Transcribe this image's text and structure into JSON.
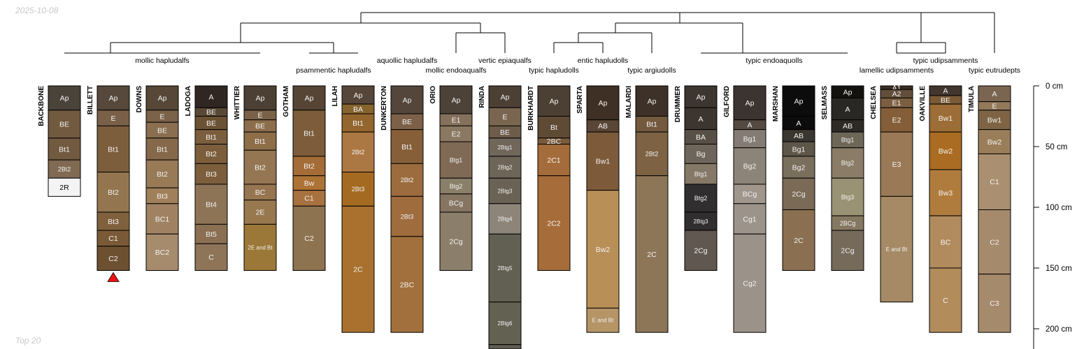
{
  "header": {
    "date": "2025-10-08"
  },
  "footer": {
    "label": "Top 20"
  },
  "depth_axis": {
    "unit": "cm",
    "ticks": [
      0,
      50,
      100,
      150,
      200
    ],
    "max": 220
  },
  "groups": [
    "mollic hapludalfs",
    "psammentic hapludalfs",
    "aquollic hapludalfs",
    "vertic epiaqualfs",
    "mollic endoaqualfs",
    "entic hapludolls",
    "typic hapludolls",
    "typic argiudolls",
    "typic endoaquolls",
    "typic udipsamments",
    "lamellic udipsamments",
    "typic eutrudepts"
  ],
  "profiles": [
    {
      "name": "BACKBONE",
      "horizons": [
        {
          "name": "Ap",
          "top": 0,
          "bottom": 20,
          "color": "#4a433a"
        },
        {
          "name": "BE",
          "top": 20,
          "bottom": 43,
          "color": "#725a40"
        },
        {
          "name": "Bt1",
          "top": 43,
          "bottom": 61,
          "color": "#725a40"
        },
        {
          "name": "2Bt2",
          "top": 61,
          "bottom": 76,
          "color": "#816a52"
        },
        {
          "name": "2R",
          "top": 76,
          "bottom": 91,
          "color": "#f4f4f4"
        }
      ]
    },
    {
      "name": "BILLETT",
      "marker": true,
      "horizons": [
        {
          "name": "Ap",
          "top": 0,
          "bottom": 20,
          "color": "#56483a"
        },
        {
          "name": "E",
          "top": 20,
          "bottom": 33,
          "color": "#7a6048"
        },
        {
          "name": "Bt1",
          "top": 33,
          "bottom": 71,
          "color": "#7d5e3c"
        },
        {
          "name": "Bt2",
          "top": 71,
          "bottom": 104,
          "color": "#93764f"
        },
        {
          "name": "Bt3",
          "top": 104,
          "bottom": 119,
          "color": "#80613d"
        },
        {
          "name": "C1",
          "top": 119,
          "bottom": 132,
          "color": "#7a5a36"
        },
        {
          "name": "C2",
          "top": 132,
          "bottom": 152,
          "color": "#6d5030"
        }
      ]
    },
    {
      "name": "DOWNS",
      "horizons": [
        {
          "name": "Ap",
          "top": 0,
          "bottom": 20,
          "color": "#564736"
        },
        {
          "name": "E",
          "top": 20,
          "bottom": 30,
          "color": "#7a6349"
        },
        {
          "name": "BE",
          "top": 30,
          "bottom": 43,
          "color": "#8a6e4f"
        },
        {
          "name": "Bt1",
          "top": 43,
          "bottom": 61,
          "color": "#86694a"
        },
        {
          "name": "Bt2",
          "top": 61,
          "bottom": 84,
          "color": "#987a57"
        },
        {
          "name": "Bt3",
          "top": 84,
          "bottom": 97,
          "color": "#a0805a"
        },
        {
          "name": "BC1",
          "top": 97,
          "bottom": 122,
          "color": "#a08262"
        },
        {
          "name": "BC2",
          "top": 122,
          "bottom": 152,
          "color": "#a68b6c"
        }
      ]
    },
    {
      "name": "LADOGA",
      "horizons": [
        {
          "name": "A",
          "top": 0,
          "bottom": 18,
          "color": "#302722"
        },
        {
          "name": "BE",
          "top": 18,
          "bottom": 25,
          "color": "#5a4836"
        },
        {
          "name": "BE",
          "top": 25,
          "bottom": 36,
          "color": "#6c5234"
        },
        {
          "name": "Bt1",
          "top": 36,
          "bottom": 48,
          "color": "#7a5e3d"
        },
        {
          "name": "Bt2",
          "top": 48,
          "bottom": 64,
          "color": "#7c5e3c"
        },
        {
          "name": "Bt3",
          "top": 64,
          "bottom": 81,
          "color": "#7c5e3c"
        },
        {
          "name": "Bt4",
          "top": 81,
          "bottom": 114,
          "color": "#8e7457"
        },
        {
          "name": "Bt5",
          "top": 114,
          "bottom": 130,
          "color": "#8a6f52"
        },
        {
          "name": "C",
          "top": 130,
          "bottom": 152,
          "color": "#8e7558"
        }
      ]
    },
    {
      "name": "WHITTIER",
      "horizons": [
        {
          "name": "Ap",
          "top": 0,
          "bottom": 20,
          "color": "#4c4034"
        },
        {
          "name": "E",
          "top": 20,
          "bottom": 28,
          "color": "#7a6248"
        },
        {
          "name": "BE",
          "top": 28,
          "bottom": 38,
          "color": "#8d6e4c"
        },
        {
          "name": "Bt1",
          "top": 38,
          "bottom": 53,
          "color": "#8e6e49"
        },
        {
          "name": "Bt2",
          "top": 53,
          "bottom": 81,
          "color": "#957652"
        },
        {
          "name": "BC",
          "top": 81,
          "bottom": 94,
          "color": "#957650"
        },
        {
          "name": "2E",
          "top": 94,
          "bottom": 114,
          "color": "#98784e"
        },
        {
          "name": "2E and Bt",
          "top": 114,
          "bottom": 152,
          "color": "#9c7838"
        }
      ]
    },
    {
      "name": "GOTHAM",
      "horizons": [
        {
          "name": "Ap",
          "top": 0,
          "bottom": 20,
          "color": "#564535"
        },
        {
          "name": "Bt1",
          "top": 20,
          "bottom": 58,
          "color": "#7c5c3a"
        },
        {
          "name": "Bt2",
          "top": 58,
          "bottom": 74,
          "color": "#a46c36"
        },
        {
          "name": "Bw",
          "top": 74,
          "bottom": 86,
          "color": "#ad7236"
        },
        {
          "name": "C1",
          "top": 86,
          "bottom": 99,
          "color": "#a7723f"
        },
        {
          "name": "C2",
          "top": 99,
          "bottom": 152,
          "color": "#8e7350"
        }
      ]
    },
    {
      "name": "LILAH",
      "horizons": [
        {
          "name": "Ap",
          "top": 0,
          "bottom": 15,
          "color": "#56463a"
        },
        {
          "name": "BA",
          "top": 15,
          "bottom": 23,
          "color": "#86642e"
        },
        {
          "name": "Bt1",
          "top": 23,
          "bottom": 38,
          "color": "#93662f"
        },
        {
          "name": "2Bt2",
          "top": 38,
          "bottom": 71,
          "color": "#ab7743"
        },
        {
          "name": "2Bt3",
          "top": 71,
          "bottom": 99,
          "color": "#a56a22"
        },
        {
          "name": "2C",
          "top": 99,
          "bottom": 203,
          "color": "#a9702e"
        }
      ]
    },
    {
      "name": "DUNKERTON",
      "horizons": [
        {
          "name": "Ap",
          "top": 0,
          "bottom": 23,
          "color": "#54463a"
        },
        {
          "name": "BE",
          "top": 23,
          "bottom": 36,
          "color": "#7c6048"
        },
        {
          "name": "Bt1",
          "top": 36,
          "bottom": 64,
          "color": "#865f38"
        },
        {
          "name": "2Bt2",
          "top": 64,
          "bottom": 91,
          "color": "#9c6c3e"
        },
        {
          "name": "2Bt3",
          "top": 91,
          "bottom": 124,
          "color": "#9f6c3e"
        },
        {
          "name": "2BC",
          "top": 124,
          "bottom": 203,
          "color": "#a2703c"
        }
      ]
    },
    {
      "name": "ORIO",
      "horizons": [
        {
          "name": "Ap",
          "top": 0,
          "bottom": 23,
          "color": "#4d4238"
        },
        {
          "name": "E1",
          "top": 23,
          "bottom": 33,
          "color": "#85705c"
        },
        {
          "name": "E2",
          "top": 33,
          "bottom": 46,
          "color": "#8b7862"
        },
        {
          "name": "Btg1",
          "top": 46,
          "bottom": 76,
          "color": "#7e6a55"
        },
        {
          "name": "Btg2",
          "top": 76,
          "bottom": 89,
          "color": "#8a7f69"
        },
        {
          "name": "BCg",
          "top": 89,
          "bottom": 104,
          "color": "#857561"
        },
        {
          "name": "2Cg",
          "top": 104,
          "bottom": 152,
          "color": "#8b7f6b"
        }
      ]
    },
    {
      "name": "RINDA",
      "horizons": [
        {
          "name": "Ap",
          "top": 0,
          "bottom": 18,
          "color": "#4c4035"
        },
        {
          "name": "E",
          "top": 18,
          "bottom": 33,
          "color": "#7a6650"
        },
        {
          "name": "BE",
          "top": 33,
          "bottom": 43,
          "color": "#6e5c4a"
        },
        {
          "name": "2Btg1",
          "top": 43,
          "bottom": 58,
          "color": "#70665a"
        },
        {
          "name": "2Btg2",
          "top": 58,
          "bottom": 76,
          "color": "#6d6557"
        },
        {
          "name": "2Btg3",
          "top": 76,
          "bottom": 97,
          "color": "#6a6355"
        },
        {
          "name": "2Btg4",
          "top": 97,
          "bottom": 122,
          "color": "#8d857a"
        },
        {
          "name": "2Btg5",
          "top": 122,
          "bottom": 178,
          "color": "#626052"
        },
        {
          "name": "2Btg6",
          "top": 178,
          "bottom": 213,
          "color": "#636152"
        },
        {
          "name": "",
          "top": 213,
          "bottom": 222,
          "color": "#5e5c50"
        }
      ]
    },
    {
      "name": "BURKHARDT",
      "horizons": [
        {
          "name": "Ap",
          "top": 0,
          "bottom": 25,
          "color": "#4c4034"
        },
        {
          "name": "Bt",
          "top": 25,
          "bottom": 43,
          "color": "#5f4a36"
        },
        {
          "name": "2BC",
          "top": 43,
          "bottom": 48,
          "color": "#7a5a3c"
        },
        {
          "name": "2C1",
          "top": 48,
          "bottom": 74,
          "color": "#a46c3a"
        },
        {
          "name": "2C2",
          "top": 74,
          "bottom": 152,
          "color": "#a66c3a"
        }
      ]
    },
    {
      "name": "SPARTA",
      "horizons": [
        {
          "name": "Ap",
          "top": 0,
          "bottom": 28,
          "color": "#3e3024"
        },
        {
          "name": "AB",
          "top": 28,
          "bottom": 38,
          "color": "#5a4636"
        },
        {
          "name": "Bw1",
          "top": 38,
          "bottom": 86,
          "color": "#7c5a3a"
        },
        {
          "name": "Bw2",
          "top": 86,
          "bottom": 183,
          "color": "#b88f56"
        },
        {
          "name": "E and Bt",
          "top": 183,
          "bottom": 203,
          "color": "#b59466"
        }
      ]
    },
    {
      "name": "MALARDI",
      "horizons": [
        {
          "name": "Ap",
          "top": 0,
          "bottom": 25,
          "color": "#3e3228"
        },
        {
          "name": "Bt1",
          "top": 25,
          "bottom": 38,
          "color": "#73593d"
        },
        {
          "name": "2Bt2",
          "top": 38,
          "bottom": 74,
          "color": "#7d6343"
        },
        {
          "name": "2C",
          "top": 74,
          "bottom": 203,
          "color": "#8d7658"
        }
      ]
    },
    {
      "name": "DRUMMER",
      "horizons": [
        {
          "name": "Ap",
          "top": 0,
          "bottom": 18,
          "color": "#3c3530"
        },
        {
          "name": "A",
          "top": 18,
          "bottom": 36,
          "color": "#3c3530"
        },
        {
          "name": "BA",
          "top": 36,
          "bottom": 48,
          "color": "#585046"
        },
        {
          "name": "Bg",
          "top": 48,
          "bottom": 64,
          "color": "#6e665a"
        },
        {
          "name": "Btg1",
          "top": 64,
          "bottom": 81,
          "color": "#857866"
        },
        {
          "name": "Btg2",
          "top": 81,
          "bottom": 104,
          "color": "#302e2e"
        },
        {
          "name": "2Btg3",
          "top": 104,
          "bottom": 119,
          "color": "#302e2e"
        },
        {
          "name": "2Cg",
          "top": 119,
          "bottom": 152,
          "color": "#605850"
        }
      ]
    },
    {
      "name": "GILFORD",
      "horizons": [
        {
          "name": "Ap",
          "top": 0,
          "bottom": 28,
          "color": "#3c3430"
        },
        {
          "name": "A",
          "top": 28,
          "bottom": 36,
          "color": "#544a42"
        },
        {
          "name": "Bg1",
          "top": 36,
          "bottom": 51,
          "color": "#847c74"
        },
        {
          "name": "Bg2",
          "top": 51,
          "bottom": 81,
          "color": "#8c8478"
        },
        {
          "name": "BCg",
          "top": 81,
          "bottom": 97,
          "color": "#a0968c"
        },
        {
          "name": "Cg1",
          "top": 97,
          "bottom": 122,
          "color": "#9c938a"
        },
        {
          "name": "Cg2",
          "top": 122,
          "bottom": 203,
          "color": "#9b9289"
        }
      ]
    },
    {
      "name": "MARSHAN",
      "horizons": [
        {
          "name": "Ap",
          "top": 0,
          "bottom": 25,
          "color": "#0c0c0c"
        },
        {
          "name": "A",
          "top": 25,
          "bottom": 36,
          "color": "#0c0c0c"
        },
        {
          "name": "AB",
          "top": 36,
          "bottom": 46,
          "color": "#3a3630"
        },
        {
          "name": "Bg1",
          "top": 46,
          "bottom": 58,
          "color": "#5e5648"
        },
        {
          "name": "Bg2",
          "top": 58,
          "bottom": 76,
          "color": "#7a6e5c"
        },
        {
          "name": "2Cg",
          "top": 76,
          "bottom": 102,
          "color": "#7a6a56"
        },
        {
          "name": "2C",
          "top": 102,
          "bottom": 152,
          "color": "#8a7050"
        }
      ]
    },
    {
      "name": "SELMASS",
      "horizons": [
        {
          "name": "Ap",
          "top": 0,
          "bottom": 10,
          "color": "#14120f"
        },
        {
          "name": "A",
          "top": 10,
          "bottom": 28,
          "color": "#2a2824"
        },
        {
          "name": "AB",
          "top": 28,
          "bottom": 38,
          "color": "#2e2b26"
        },
        {
          "name": "Btg1",
          "top": 38,
          "bottom": 51,
          "color": "#6e6656"
        },
        {
          "name": "Btg2",
          "top": 51,
          "bottom": 76,
          "color": "#8a7c66"
        },
        {
          "name": "Btg3",
          "top": 76,
          "bottom": 107,
          "color": "#9a9274"
        },
        {
          "name": "2BCg",
          "top": 107,
          "bottom": 119,
          "color": "#857862"
        },
        {
          "name": "2Cg",
          "top": 119,
          "bottom": 152,
          "color": "#766a5a"
        }
      ]
    },
    {
      "name": "CHELSEA",
      "horizons": [
        {
          "name": "A1",
          "top": 0,
          "bottom": 3,
          "color": "#3c2e24"
        },
        {
          "name": "A2",
          "top": 3,
          "bottom": 10,
          "color": "#624e3a"
        },
        {
          "name": "E1",
          "top": 10,
          "bottom": 18,
          "color": "#7c5e40"
        },
        {
          "name": "E2",
          "top": 18,
          "bottom": 38,
          "color": "#845e38"
        },
        {
          "name": "E3",
          "top": 38,
          "bottom": 91,
          "color": "#9a7a56"
        },
        {
          "name": "E and Bt",
          "top": 91,
          "bottom": 178,
          "color": "#a58a65"
        }
      ]
    },
    {
      "name": "OAKVILLE",
      "horizons": [
        {
          "name": "A",
          "top": 0,
          "bottom": 8,
          "color": "#42362e"
        },
        {
          "name": "BE",
          "top": 8,
          "bottom": 15,
          "color": "#7a5a36"
        },
        {
          "name": "Bw1",
          "top": 15,
          "bottom": 38,
          "color": "#9c6d36"
        },
        {
          "name": "Bw2",
          "top": 38,
          "bottom": 69,
          "color": "#aa6c22"
        },
        {
          "name": "Bw3",
          "top": 69,
          "bottom": 107,
          "color": "#b07c3e"
        },
        {
          "name": "BC",
          "top": 107,
          "bottom": 150,
          "color": "#b18b5e"
        },
        {
          "name": "C",
          "top": 150,
          "bottom": 203,
          "color": "#b38c5b"
        }
      ]
    },
    {
      "name": "TIMULA",
      "horizons": [
        {
          "name": "A",
          "top": 0,
          "bottom": 13,
          "color": "#7a6650"
        },
        {
          "name": "E",
          "top": 13,
          "bottom": 20,
          "color": "#93785a"
        },
        {
          "name": "Bw1",
          "top": 20,
          "bottom": 36,
          "color": "#7e6444"
        },
        {
          "name": "Bw2",
          "top": 36,
          "bottom": 56,
          "color": "#9a7e5a"
        },
        {
          "name": "C1",
          "top": 56,
          "bottom": 102,
          "color": "#aa9070"
        },
        {
          "name": "C2",
          "top": 102,
          "bottom": 155,
          "color": "#a58a6c"
        },
        {
          "name": "C3",
          "top": 155,
          "bottom": 203,
          "color": "#a68a6c"
        }
      ]
    }
  ]
}
